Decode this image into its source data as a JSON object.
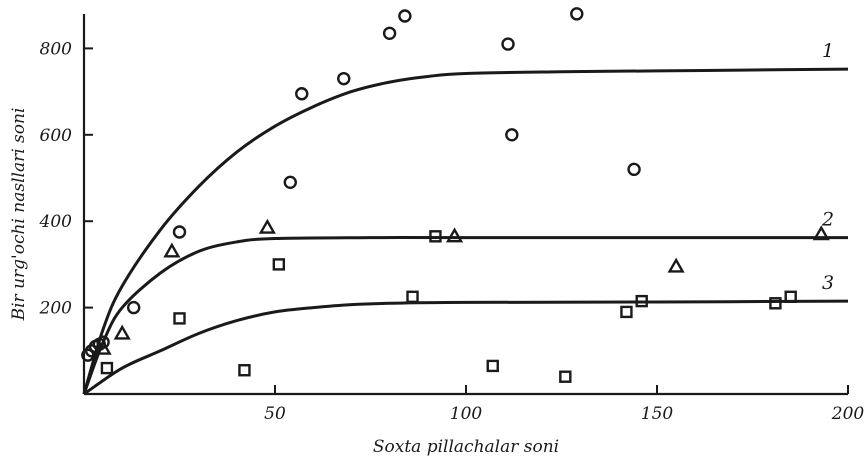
{
  "chart_data": {
    "type": "scatter",
    "xlabel": "Soxta pillachalar soni",
    "ylabel": "Bir urg'ochi nasllari soni",
    "xlim": [
      0,
      200
    ],
    "ylim": [
      0,
      880
    ],
    "x_ticks": [
      50,
      100,
      150,
      200
    ],
    "y_ticks": [
      200,
      400,
      600,
      800
    ],
    "grid": false,
    "series": [
      {
        "name": "1",
        "marker": "circle",
        "points": [
          [
            1,
            90
          ],
          [
            2,
            100
          ],
          [
            3,
            110
          ],
          [
            4,
            115
          ],
          [
            5,
            120
          ],
          [
            13,
            200
          ],
          [
            25,
            375
          ],
          [
            54,
            490
          ],
          [
            57,
            695
          ],
          [
            68,
            730
          ],
          [
            80,
            835
          ],
          [
            84,
            875
          ],
          [
            111,
            810
          ],
          [
            112,
            600
          ],
          [
            129,
            880
          ],
          [
            144,
            520
          ]
        ],
        "curve": [
          [
            0,
            0
          ],
          [
            5,
            150
          ],
          [
            10,
            250
          ],
          [
            20,
            380
          ],
          [
            30,
            480
          ],
          [
            40,
            560
          ],
          [
            50,
            620
          ],
          [
            60,
            665
          ],
          [
            70,
            700
          ],
          [
            80,
            722
          ],
          [
            90,
            735
          ],
          [
            100,
            742
          ],
          [
            125,
            746
          ],
          [
            150,
            748
          ],
          [
            175,
            750
          ],
          [
            200,
            752
          ]
        ]
      },
      {
        "name": "2",
        "marker": "triangle",
        "points": [
          [
            5,
            105
          ],
          [
            10,
            140
          ],
          [
            23,
            330
          ],
          [
            48,
            385
          ],
          [
            97,
            365
          ],
          [
            155,
            295
          ],
          [
            193,
            370
          ]
        ],
        "curve": [
          [
            0,
            0
          ],
          [
            5,
            120
          ],
          [
            10,
            200
          ],
          [
            20,
            280
          ],
          [
            30,
            330
          ],
          [
            40,
            352
          ],
          [
            50,
            360
          ],
          [
            75,
            362
          ],
          [
            100,
            362
          ],
          [
            150,
            362
          ],
          [
            200,
            362
          ]
        ]
      },
      {
        "name": "3",
        "marker": "square",
        "points": [
          [
            6,
            60
          ],
          [
            25,
            175
          ],
          [
            42,
            55
          ],
          [
            51,
            300
          ],
          [
            86,
            225
          ],
          [
            92,
            365
          ],
          [
            107,
            65
          ],
          [
            126,
            40
          ],
          [
            142,
            190
          ],
          [
            146,
            215
          ],
          [
            181,
            210
          ],
          [
            185,
            225
          ]
        ],
        "curve": [
          [
            0,
            0
          ],
          [
            10,
            60
          ],
          [
            20,
            100
          ],
          [
            30,
            140
          ],
          [
            40,
            170
          ],
          [
            50,
            190
          ],
          [
            60,
            200
          ],
          [
            70,
            207
          ],
          [
            80,
            210
          ],
          [
            100,
            212
          ],
          [
            150,
            213
          ],
          [
            200,
            215
          ]
        ]
      }
    ]
  }
}
